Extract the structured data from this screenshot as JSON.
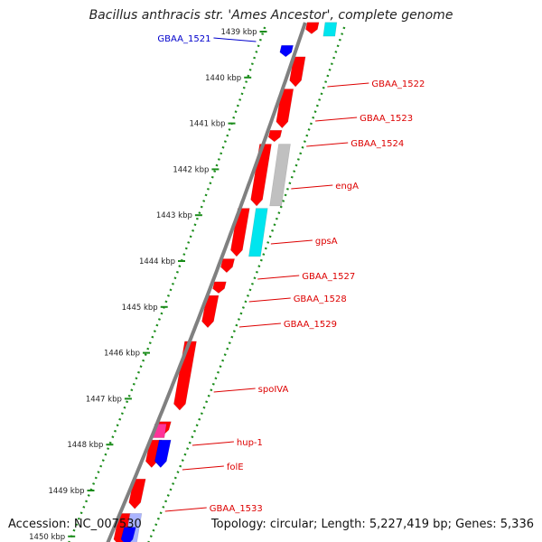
{
  "title": "Bacillus anthracis str. 'Ames Ancestor', complete genome",
  "accession_text": "Accession: NC_007530",
  "summary_text": "Topology: circular; Length: 5,227,419 bp; Genes: 5,336",
  "colors": {
    "backbone": "#808080",
    "ruler": "#1a8c1a",
    "forward_gene": "#ff0000",
    "reverse_gene": "#ff0000",
    "label_forward": "#dd0000",
    "label_reverse": "#0000cc",
    "rRNA": "#00e5ee",
    "tRNA": "#ff3399",
    "other": "#c0c0c0",
    "blue_feature": "#0000ff",
    "light_blue_feature": "#aab4ff"
  },
  "ruler_ticks_kbp": [
    {
      "value": 1439,
      "label": "1439 kbp"
    },
    {
      "value": 1440,
      "label": "1440 kbp"
    },
    {
      "value": 1441,
      "label": "1441 kbp"
    },
    {
      "value": 1442,
      "label": "1442 kbp"
    },
    {
      "value": 1443,
      "label": "1443 kbp"
    },
    {
      "value": 1444,
      "label": "1444 kbp"
    },
    {
      "value": 1445,
      "label": "1445 kbp"
    },
    {
      "value": 1446,
      "label": "1446 kbp"
    },
    {
      "value": 1447,
      "label": "1447 kbp"
    },
    {
      "value": 1448,
      "label": "1448 kbp"
    },
    {
      "value": 1449,
      "label": "1449 kbp"
    },
    {
      "value": 1450,
      "label": "1450 kbp"
    }
  ],
  "gene_labels": [
    {
      "name": "GBAA_1521",
      "strand": "reverse"
    },
    {
      "name": "GBAA_1522",
      "strand": "forward"
    },
    {
      "name": "GBAA_1523",
      "strand": "forward"
    },
    {
      "name": "GBAA_1524",
      "strand": "forward"
    },
    {
      "name": "engA",
      "strand": "forward"
    },
    {
      "name": "gpsA",
      "strand": "forward"
    },
    {
      "name": "GBAA_1527",
      "strand": "forward"
    },
    {
      "name": "GBAA_1528",
      "strand": "forward"
    },
    {
      "name": "GBAA_1529",
      "strand": "forward"
    },
    {
      "name": "spoIVA",
      "strand": "forward"
    },
    {
      "name": "hup-1",
      "strand": "forward"
    },
    {
      "name": "folE",
      "strand": "forward"
    },
    {
      "name": "GBAA_1533",
      "strand": "forward"
    }
  ],
  "features": [
    {
      "kind": "CDS",
      "strand": "forward",
      "start_kbp": 1438.8,
      "end_kbp": 1439.05,
      "color": "forward_gene"
    },
    {
      "kind": "rRNA",
      "strand": "forward",
      "start_kbp": 1438.8,
      "end_kbp": 1439.1,
      "color": "rRNA"
    },
    {
      "kind": "CDS",
      "strand": "reverse",
      "start_kbp": 1439.3,
      "end_kbp": 1439.55,
      "color": "blue_feature"
    },
    {
      "kind": "CDS",
      "strand": "forward",
      "start_kbp": 1439.55,
      "end_kbp": 1440.2,
      "color": "forward_gene"
    },
    {
      "kind": "CDS",
      "strand": "forward",
      "start_kbp": 1440.25,
      "end_kbp": 1441.1,
      "color": "forward_gene"
    },
    {
      "kind": "CDS",
      "strand": "forward",
      "start_kbp": 1441.15,
      "end_kbp": 1441.4,
      "color": "forward_gene"
    },
    {
      "kind": "CDS",
      "strand": "forward",
      "start_kbp": 1441.45,
      "end_kbp": 1442.8,
      "color": "forward_gene"
    },
    {
      "kind": "other",
      "strand": "forward",
      "start_kbp": 1441.45,
      "end_kbp": 1442.8,
      "color": "other"
    },
    {
      "kind": "CDS",
      "strand": "forward",
      "start_kbp": 1442.85,
      "end_kbp": 1443.9,
      "color": "forward_gene"
    },
    {
      "kind": "rRNA",
      "strand": "forward",
      "start_kbp": 1442.85,
      "end_kbp": 1443.9,
      "color": "rRNA"
    },
    {
      "kind": "CDS",
      "strand": "forward",
      "start_kbp": 1443.95,
      "end_kbp": 1444.25,
      "color": "forward_gene"
    },
    {
      "kind": "CDS",
      "strand": "forward",
      "start_kbp": 1444.45,
      "end_kbp": 1444.7,
      "color": "forward_gene"
    },
    {
      "kind": "CDS",
      "strand": "forward",
      "start_kbp": 1444.75,
      "end_kbp": 1445.45,
      "color": "forward_gene"
    },
    {
      "kind": "CDS",
      "strand": "forward",
      "start_kbp": 1445.75,
      "end_kbp": 1447.25,
      "color": "forward_gene"
    },
    {
      "kind": "CDS",
      "strand": "forward",
      "start_kbp": 1447.5,
      "end_kbp": 1447.8,
      "color": "forward_gene"
    },
    {
      "kind": "tRNA",
      "strand": "forward",
      "start_kbp": 1447.55,
      "end_kbp": 1447.85,
      "color": "tRNA"
    },
    {
      "kind": "CDS",
      "strand": "forward",
      "start_kbp": 1447.9,
      "end_kbp": 1448.5,
      "color": "forward_gene"
    },
    {
      "kind": "CDS",
      "strand": "forward",
      "start_kbp": 1447.9,
      "end_kbp": 1448.5,
      "color": "blue_feature"
    },
    {
      "kind": "CDS",
      "strand": "forward",
      "start_kbp": 1448.75,
      "end_kbp": 1449.4,
      "color": "forward_gene"
    },
    {
      "kind": "CDS",
      "strand": "forward",
      "start_kbp": 1449.5,
      "end_kbp": 1450.2,
      "color": "forward_gene"
    },
    {
      "kind": "CDS",
      "strand": "forward",
      "start_kbp": 1449.5,
      "end_kbp": 1450.2,
      "color": "light_blue_feature"
    },
    {
      "kind": "CDS",
      "strand": "forward",
      "start_kbp": 1449.8,
      "end_kbp": 1450.2,
      "color": "blue_feature"
    }
  ]
}
